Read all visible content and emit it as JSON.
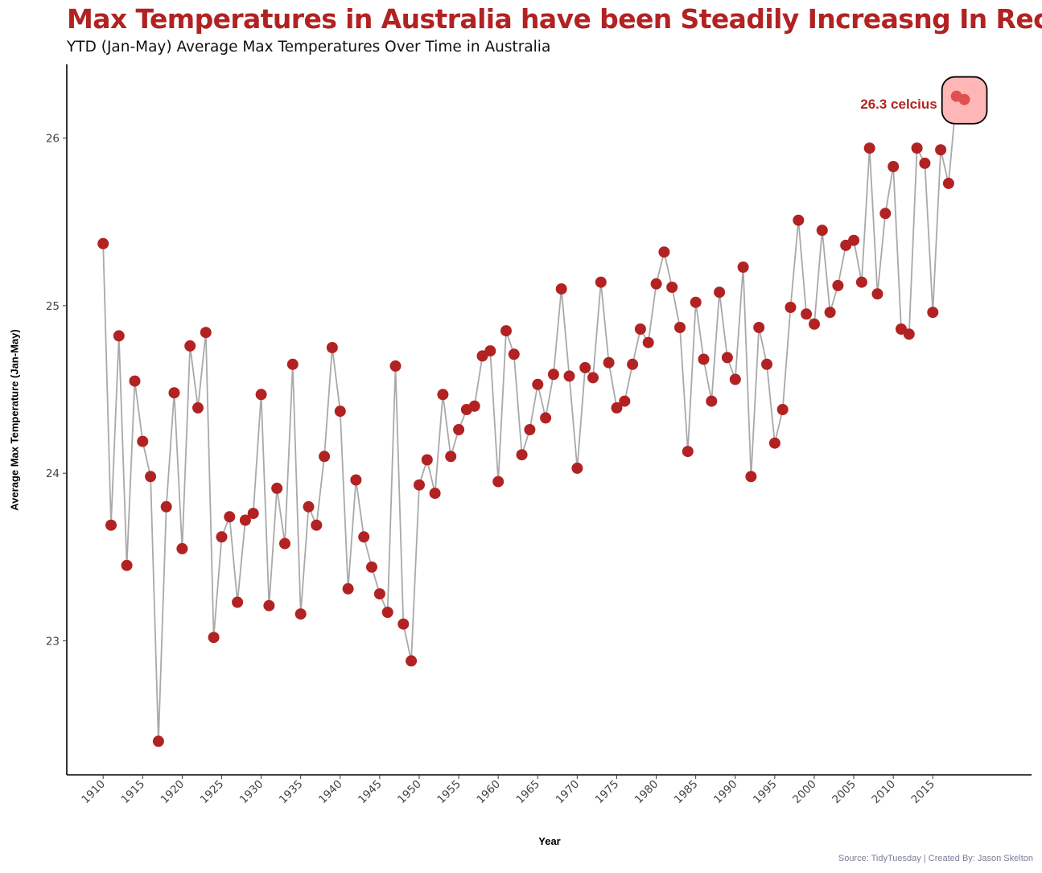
{
  "title": "Max Temperatures in Australia have been Steadily Increasng In Recent Years",
  "subtitle": "YTD (Jan-May) Average Max Temperatures Over Time in Australia",
  "caption": "Source: TidyTuesday | Created By: Jason Skelton",
  "colors": {
    "point": "#B22222",
    "line": "#A9A9A9",
    "highlight_box": "#FFB6B6",
    "highlight_point": "#E05050",
    "title": "#B22222"
  },
  "chart_data": {
    "type": "line",
    "title": "Max Temperatures in Australia have been Steadily Increasng In Recent Years",
    "subtitle": "YTD (Jan-May) Average Max Temperatures Over Time in Australia",
    "xlabel": "Year",
    "ylabel": "Average Max Temperature (Jan-May)",
    "xlim": [
      1905.4,
      2027.5
    ],
    "ylim": [
      22.2,
      26.44
    ],
    "x_ticks": [
      1910,
      1915,
      1920,
      1925,
      1930,
      1935,
      1940,
      1945,
      1950,
      1955,
      1960,
      1965,
      1970,
      1975,
      1980,
      1985,
      1990,
      1995,
      2000,
      2005,
      2010,
      2015
    ],
    "y_ticks": [
      23,
      24,
      25,
      26
    ],
    "grid": false,
    "legend": "none",
    "annotation": {
      "label": "26.3 celcius",
      "years": [
        2018,
        2019
      ]
    },
    "series": [
      {
        "x": [
          1910,
          1911,
          1912,
          1913,
          1914,
          1915,
          1916,
          1917,
          1918,
          1919,
          1920,
          1921,
          1922,
          1923,
          1924,
          1925,
          1926,
          1927,
          1928,
          1929,
          1930,
          1931,
          1932,
          1933,
          1934,
          1935,
          1936,
          1937,
          1938,
          1939,
          1940,
          1941,
          1942,
          1943,
          1944,
          1945,
          1946,
          1947,
          1948,
          1949,
          1950,
          1951,
          1952,
          1953,
          1954,
          1955,
          1956,
          1957,
          1958,
          1959,
          1960,
          1961,
          1962,
          1963,
          1964,
          1965,
          1966,
          1967,
          1968,
          1969,
          1970,
          1971,
          1972,
          1973,
          1974,
          1975,
          1976,
          1977,
          1978,
          1979,
          1980,
          1981,
          1982,
          1983,
          1984,
          1985,
          1986,
          1987,
          1988,
          1989,
          1990,
          1991,
          1992,
          1993,
          1994,
          1995,
          1996,
          1997,
          1998,
          1999,
          2000,
          2001,
          2002,
          2003,
          2004,
          2005,
          2006,
          2007,
          2008,
          2009,
          2010,
          2011,
          2012,
          2013,
          2014,
          2015,
          2016,
          2017,
          2018,
          2019
        ],
        "y": [
          25.37,
          23.69,
          24.82,
          23.45,
          24.55,
          24.19,
          23.98,
          22.4,
          23.8,
          24.48,
          23.55,
          24.76,
          24.39,
          24.84,
          23.02,
          23.62,
          23.74,
          23.23,
          23.72,
          23.76,
          24.47,
          23.21,
          23.91,
          23.58,
          24.65,
          23.16,
          23.8,
          23.69,
          24.1,
          24.75,
          24.37,
          23.31,
          23.96,
          23.62,
          23.44,
          23.28,
          23.17,
          24.64,
          23.1,
          22.88,
          23.93,
          24.08,
          23.88,
          24.47,
          24.1,
          24.26,
          24.38,
          24.4,
          24.7,
          24.73,
          23.95,
          24.85,
          24.71,
          24.11,
          24.26,
          24.53,
          24.33,
          24.59,
          25.1,
          24.58,
          24.03,
          24.63,
          24.57,
          25.14,
          24.66,
          24.39,
          24.43,
          24.65,
          24.86,
          24.78,
          25.13,
          25.32,
          25.11,
          24.87,
          24.13,
          25.02,
          24.68,
          24.43,
          25.08,
          24.69,
          24.56,
          25.23,
          23.98,
          24.87,
          24.65,
          24.18,
          24.38,
          24.99,
          25.51,
          24.95,
          24.89,
          25.45,
          24.96,
          25.12,
          25.36,
          25.39,
          25.14,
          25.94,
          25.07,
          25.55,
          25.83,
          24.86,
          24.83,
          25.94,
          25.85,
          24.96,
          25.93,
          25.73,
          26.25,
          26.23
        ]
      }
    ]
  }
}
